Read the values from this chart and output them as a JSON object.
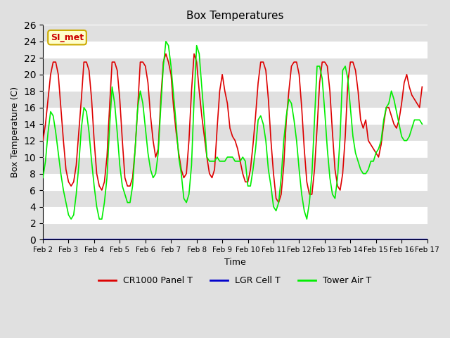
{
  "title": "Box Temperatures",
  "xlabel": "Time",
  "ylabel": "Box Temperature (C)",
  "xlim": [
    0,
    15
  ],
  "ylim": [
    0,
    26
  ],
  "yticks": [
    0,
    2,
    4,
    6,
    8,
    10,
    12,
    14,
    16,
    18,
    20,
    22,
    24,
    26
  ],
  "xtick_labels": [
    "Feb 2",
    "Feb 3",
    "Feb 4",
    "Feb 5",
    "Feb 6",
    "Feb 7",
    "Feb 8",
    "Feb 9",
    "Feb 10",
    "Feb 11",
    "Feb 12",
    "Feb 13",
    "Feb 14",
    "Feb 15",
    "Feb 16",
    "Feb 17"
  ],
  "annotation_text": "SI_met",
  "annotation_color": "#cc0000",
  "annotation_bg": "#ffffcc",
  "annotation_border": "#ccaa00",
  "cr1000_color": "#dd0000",
  "lgr_color": "#0000cc",
  "tower_color": "#00ee00",
  "bg_color": "#e0e0e0",
  "legend_labels": [
    "CR1000 Panel T",
    "LGR Cell T",
    "Tower Air T"
  ],
  "cr1000_data_x": [
    0,
    0.1,
    0.2,
    0.3,
    0.4,
    0.5,
    0.6,
    0.7,
    0.8,
    0.9,
    1,
    1.1,
    1.2,
    1.3,
    1.4,
    1.5,
    1.6,
    1.7,
    1.8,
    1.9,
    2,
    2.1,
    2.2,
    2.3,
    2.4,
    2.5,
    2.6,
    2.7,
    2.8,
    2.9,
    3,
    3.1,
    3.2,
    3.3,
    3.4,
    3.5,
    3.6,
    3.7,
    3.8,
    3.9,
    4,
    4.1,
    4.2,
    4.3,
    4.4,
    4.5,
    4.6,
    4.7,
    4.8,
    4.9,
    5,
    5.1,
    5.2,
    5.3,
    5.4,
    5.5,
    5.6,
    5.7,
    5.8,
    5.9,
    6,
    6.1,
    6.2,
    6.3,
    6.4,
    6.5,
    6.6,
    6.7,
    6.8,
    6.9,
    7,
    7.1,
    7.2,
    7.3,
    7.4,
    7.5,
    7.6,
    7.7,
    7.8,
    7.9,
    8,
    8.1,
    8.2,
    8.3,
    8.4,
    8.5,
    8.6,
    8.7,
    8.8,
    8.9,
    9,
    9.1,
    9.2,
    9.3,
    9.4,
    9.5,
    9.6,
    9.7,
    9.8,
    9.9,
    10,
    10.1,
    10.2,
    10.3,
    10.4,
    10.5,
    10.6,
    10.7,
    10.8,
    10.9,
    11,
    11.1,
    11.2,
    11.3,
    11.4,
    11.5,
    11.6,
    11.7,
    11.8,
    11.9,
    12,
    12.1,
    12.2,
    12.3,
    12.4,
    12.5,
    12.6,
    12.7,
    12.8,
    12.9,
    13,
    13.1,
    13.2,
    13.3,
    13.4,
    13.5,
    13.6,
    13.7,
    13.8,
    13.9,
    14,
    14.1,
    14.2,
    14.3,
    14.4,
    14.5,
    14.6,
    14.7,
    14.8,
    14.9,
    15
  ],
  "cr1000_data_y": [
    12,
    14,
    17,
    20,
    21.5,
    21.5,
    20,
    16,
    12,
    8.5,
    7,
    6.5,
    7,
    9,
    13,
    17,
    21.5,
    21.5,
    20.5,
    17,
    12,
    8,
    6.5,
    6,
    7,
    10,
    16,
    21.5,
    21.5,
    20.5,
    17,
    12,
    7.5,
    6.5,
    6.5,
    7.5,
    11,
    16,
    21.5,
    21.5,
    21,
    19,
    15,
    12,
    10,
    11,
    17,
    21.5,
    22.5,
    21.5,
    20,
    16,
    13,
    10.5,
    8.5,
    7.5,
    8,
    12,
    18,
    22.5,
    21.5,
    18,
    15,
    12.5,
    10,
    8,
    7.5,
    8.5,
    13.5,
    18,
    20,
    18,
    16.5,
    13.5,
    12.5,
    12,
    11,
    9.5,
    8,
    7,
    7,
    8.5,
    11.5,
    15,
    19,
    21.5,
    21.5,
    20.5,
    17,
    12,
    8,
    5,
    4.5,
    5.5,
    9,
    14.5,
    18,
    21,
    21.5,
    21.5,
    20,
    16,
    11,
    7,
    5.5,
    5.5,
    8.5,
    13.5,
    19,
    21.5,
    21.5,
    21,
    18,
    13,
    8.5,
    6.5,
    6,
    8,
    12.5,
    19,
    21.5,
    21.5,
    20.5,
    18,
    14.5,
    13.5,
    14.5,
    12,
    11.5,
    11,
    10.5,
    10,
    11.5,
    14,
    16,
    16,
    15,
    14,
    13.5,
    14.5,
    16.5,
    19,
    20,
    18.5,
    17.5,
    17,
    16.5,
    16,
    18.5
  ],
  "tower_data_x": [
    0,
    0.1,
    0.2,
    0.3,
    0.4,
    0.5,
    0.6,
    0.7,
    0.8,
    0.9,
    1,
    1.1,
    1.2,
    1.3,
    1.4,
    1.5,
    1.6,
    1.7,
    1.8,
    1.9,
    2,
    2.1,
    2.2,
    2.3,
    2.4,
    2.5,
    2.6,
    2.7,
    2.8,
    2.9,
    3,
    3.1,
    3.2,
    3.3,
    3.4,
    3.5,
    3.6,
    3.7,
    3.8,
    3.9,
    4,
    4.1,
    4.2,
    4.3,
    4.4,
    4.5,
    4.6,
    4.7,
    4.8,
    4.9,
    5,
    5.1,
    5.2,
    5.3,
    5.4,
    5.5,
    5.6,
    5.7,
    5.8,
    5.9,
    6,
    6.1,
    6.2,
    6.3,
    6.4,
    6.5,
    6.6,
    6.7,
    6.8,
    6.9,
    7,
    7.1,
    7.2,
    7.3,
    7.4,
    7.5,
    7.6,
    7.7,
    7.8,
    7.9,
    8,
    8.1,
    8.2,
    8.3,
    8.4,
    8.5,
    8.6,
    8.7,
    8.8,
    8.9,
    9,
    9.1,
    9.2,
    9.3,
    9.4,
    9.5,
    9.6,
    9.7,
    9.8,
    9.9,
    10,
    10.1,
    10.2,
    10.3,
    10.4,
    10.5,
    10.6,
    10.7,
    10.8,
    10.9,
    11,
    11.1,
    11.2,
    11.3,
    11.4,
    11.5,
    11.6,
    11.7,
    11.8,
    11.9,
    12,
    12.1,
    12.2,
    12.3,
    12.4,
    12.5,
    12.6,
    12.7,
    12.8,
    12.9,
    13,
    13.1,
    13.2,
    13.3,
    13.4,
    13.5,
    13.6,
    13.7,
    13.8,
    13.9,
    14,
    14.1,
    14.2,
    14.3,
    14.4,
    14.5,
    14.6,
    14.7,
    14.8,
    14.9,
    15
  ],
  "tower_data_y": [
    7.5,
    9.5,
    13,
    15.5,
    15,
    13,
    10.5,
    8,
    6,
    4.5,
    3,
    2.5,
    3,
    5.5,
    9,
    13.5,
    16,
    15.5,
    13,
    9.5,
    6.5,
    4,
    2.5,
    2.5,
    4.5,
    7.5,
    13.5,
    18.5,
    16.5,
    13,
    9,
    6.5,
    5.5,
    4.5,
    4.5,
    6.5,
    11,
    16,
    18,
    16.5,
    13.5,
    10.5,
    8.5,
    7.5,
    8,
    10.5,
    16,
    21,
    24,
    23.5,
    21,
    17.5,
    14,
    10,
    8,
    5,
    4.5,
    5.5,
    9,
    17,
    23.5,
    22.5,
    18.5,
    14.5,
    10,
    9.5,
    9.5,
    9.5,
    10,
    9.5,
    9.5,
    9.5,
    10,
    10,
    10,
    9.5,
    9.5,
    9.5,
    10,
    9.5,
    6.5,
    6.5,
    8.5,
    11,
    14.5,
    15,
    14,
    12,
    8.5,
    6.5,
    4,
    3.5,
    4.5,
    7.5,
    12,
    15,
    17,
    16.5,
    14.5,
    12,
    8.5,
    5.5,
    3.5,
    2.5,
    4.5,
    8,
    14.5,
    21,
    21,
    19.5,
    15.5,
    11,
    7.5,
    5.5,
    5,
    7.5,
    12.5,
    20.5,
    21,
    19.5,
    16,
    12.5,
    10.5,
    9.5,
    8.5,
    8,
    8,
    8.5,
    9.5,
    9.5,
    10.5,
    11,
    12,
    14.5,
    16,
    16.5,
    18,
    17,
    15.5,
    14,
    12.5,
    12,
    12,
    12.5,
    13.5,
    14.5,
    14.5,
    14.5,
    14
  ],
  "lgr_data_x": [
    0,
    15
  ],
  "lgr_data_y": [
    0,
    0
  ]
}
